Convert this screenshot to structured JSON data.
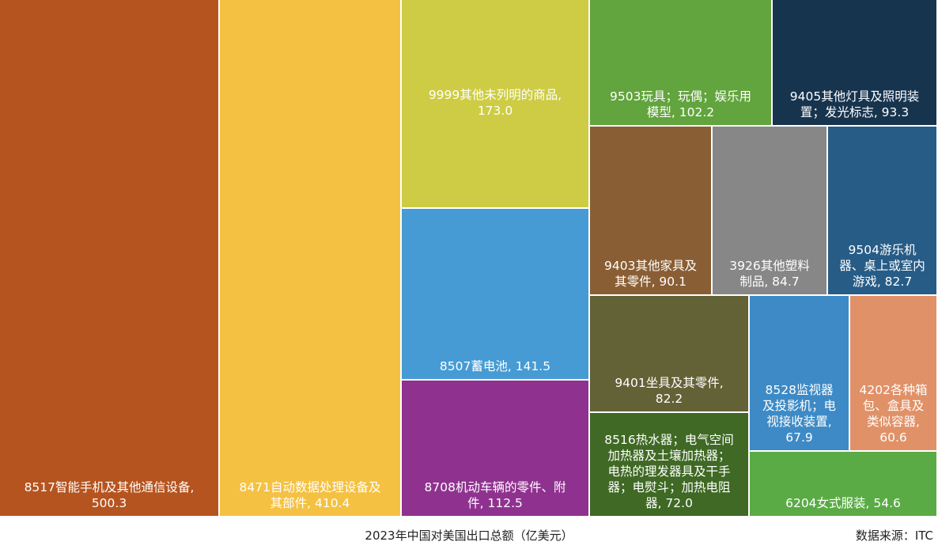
{
  "chart_data": {
    "type": "treemap",
    "caption": "2023年中国对美国出口总额（亿美元）",
    "source": "数据来源：ITC",
    "items": [
      {
        "label": "8517智能手机及其他通信设备,",
        "value_text": "500.3",
        "value": 500.3,
        "color": "#b5541f"
      },
      {
        "label": "8471自动数据处理设备及",
        "value_text": "其部件, 410.4",
        "value": 410.4,
        "color": "#f4c142"
      },
      {
        "label": "9999其他未列明的商品,",
        "value_text": "173.0",
        "value": 173.0,
        "color": "#cdcc44"
      },
      {
        "label": "8507蓄电池, 141.5",
        "value_text": "",
        "value": 141.5,
        "color": "#469bd4"
      },
      {
        "label": "8708机动车辆的零件、附",
        "value_text": "件, 112.5",
        "value": 112.5,
        "color": "#8f328f"
      },
      {
        "label": "9503玩具；玩偶；娱乐用",
        "value_text": "模型, 102.2",
        "value": 102.2,
        "color": "#62a43d"
      },
      {
        "label": "9405其他灯具及照明装",
        "value_text": "置；发光标志, 93.3",
        "value": 93.3,
        "color": "#17344f"
      },
      {
        "label": "9403其他家具及",
        "value_text": "其零件, 90.1",
        "value": 90.1,
        "color": "#8a5e35"
      },
      {
        "label": "3926其他塑料",
        "value_text": "制品, 84.7",
        "value": 84.7,
        "color": "#878787"
      },
      {
        "label": "9504游乐机",
        "value_text": "器、桌上或室内\n游戏, 82.7",
        "value": 82.7,
        "color": "#275c86"
      },
      {
        "label": "9401坐具及其零件,",
        "value_text": "82.2",
        "value": 82.2,
        "color": "#636136"
      },
      {
        "label": "8528监视器",
        "value_text": "及投影机；电\n视接收装置,\n67.9",
        "value": 67.9,
        "color": "#3d8ac6"
      },
      {
        "label": "4202各种箱",
        "value_text": "包、盒具及\n类似容器,\n60.6",
        "value": 60.6,
        "color": "#e19167"
      },
      {
        "label": "8516热水器；电气空间",
        "value_text": "加热器及土壤加热器；\n电热的理发器具及干手\n器；电熨斗；加热电阻\n器, 72.0",
        "value": 72.0,
        "color": "#3f6924"
      },
      {
        "label": "6204女式服装, 54.6",
        "value_text": "",
        "value": 54.6,
        "color": "#5aab45"
      }
    ]
  }
}
